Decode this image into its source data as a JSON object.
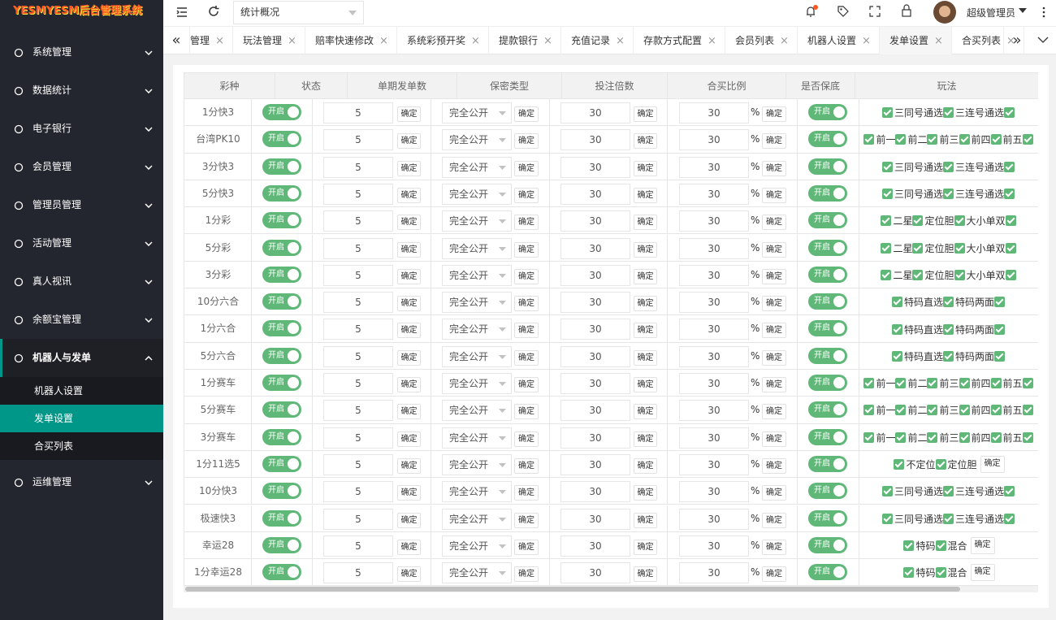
{
  "sidebar": {
    "logo": "YESMYESM后台管理系统",
    "menu": [
      {
        "label": "系统管理"
      },
      {
        "label": "数据统计"
      },
      {
        "label": "电子银行"
      },
      {
        "label": "会员管理"
      },
      {
        "label": "管理员管理"
      },
      {
        "label": "活动管理"
      },
      {
        "label": "真人视讯"
      },
      {
        "label": "余额宝管理"
      },
      {
        "label": "机器人与发单",
        "expanded": true,
        "children": [
          {
            "label": "机器人设置",
            "active": false
          },
          {
            "label": "发单设置",
            "active": true
          },
          {
            "label": "合买列表",
            "active": false
          }
        ]
      },
      {
        "label": "运维管理"
      }
    ]
  },
  "header": {
    "select": "统计概况",
    "user": "超级管理员"
  },
  "tabs": [
    {
      "label": "管理",
      "active": false
    },
    {
      "label": "玩法管理",
      "active": false
    },
    {
      "label": "赔率快速修改",
      "active": false
    },
    {
      "label": "系统彩预开奖",
      "active": false
    },
    {
      "label": "提款银行",
      "active": false
    },
    {
      "label": "充值记录",
      "active": false
    },
    {
      "label": "存款方式配置",
      "active": false
    },
    {
      "label": "会员列表",
      "active": false
    },
    {
      "label": "机器人设置",
      "active": false
    },
    {
      "label": "发单设置",
      "active": true
    },
    {
      "label": "合买列表",
      "active": false
    }
  ],
  "table": {
    "columns": [
      "彩种",
      "状态",
      "单期发单数",
      "保密类型",
      "投注倍数",
      "合买比例",
      "是否保底",
      "玩法"
    ],
    "confirm": "确定",
    "percent": "%",
    "rows": [
      {
        "name": "1分快3",
        "status": "开启",
        "count": 5,
        "secrecy": "完全公开",
        "multiple": 30,
        "ratio": 30,
        "guarantee": "开启",
        "plays": [
          "三同号通选",
          "三连号通选"
        ]
      },
      {
        "name": "台湾PK10",
        "status": "开启",
        "count": 5,
        "secrecy": "完全公开",
        "multiple": 30,
        "ratio": 30,
        "guarantee": "开启",
        "plays": [
          "前一",
          "前二",
          "前三",
          "前四",
          "前五"
        ]
      },
      {
        "name": "3分快3",
        "status": "开启",
        "count": 5,
        "secrecy": "完全公开",
        "multiple": 30,
        "ratio": 30,
        "guarantee": "开启",
        "plays": [
          "三同号通选",
          "三连号通选"
        ]
      },
      {
        "name": "5分快3",
        "status": "开启",
        "count": 5,
        "secrecy": "完全公开",
        "multiple": 30,
        "ratio": 30,
        "guarantee": "开启",
        "plays": [
          "三同号通选",
          "三连号通选"
        ]
      },
      {
        "name": "1分彩",
        "status": "开启",
        "count": 5,
        "secrecy": "完全公开",
        "multiple": 30,
        "ratio": 30,
        "guarantee": "开启",
        "plays": [
          "二星",
          "定位胆",
          "大小单双"
        ]
      },
      {
        "name": "5分彩",
        "status": "开启",
        "count": 5,
        "secrecy": "完全公开",
        "multiple": 30,
        "ratio": 30,
        "guarantee": "开启",
        "plays": [
          "二星",
          "定位胆",
          "大小单双"
        ]
      },
      {
        "name": "3分彩",
        "status": "开启",
        "count": 5,
        "secrecy": "完全公开",
        "multiple": 30,
        "ratio": 30,
        "guarantee": "开启",
        "plays": [
          "二星",
          "定位胆",
          "大小单双"
        ]
      },
      {
        "name": "10分六合",
        "status": "开启",
        "count": 5,
        "secrecy": "完全公开",
        "multiple": 30,
        "ratio": 30,
        "guarantee": "开启",
        "plays": [
          "特码直选",
          "特码两面"
        ]
      },
      {
        "name": "1分六合",
        "status": "开启",
        "count": 5,
        "secrecy": "完全公开",
        "multiple": 30,
        "ratio": 30,
        "guarantee": "开启",
        "plays": [
          "特码直选",
          "特码两面"
        ]
      },
      {
        "name": "5分六合",
        "status": "开启",
        "count": 5,
        "secrecy": "完全公开",
        "multiple": 30,
        "ratio": 30,
        "guarantee": "开启",
        "plays": [
          "特码直选",
          "特码两面"
        ]
      },
      {
        "name": "1分赛车",
        "status": "开启",
        "count": 5,
        "secrecy": "完全公开",
        "multiple": 30,
        "ratio": 30,
        "guarantee": "开启",
        "plays": [
          "前一",
          "前二",
          "前三",
          "前四",
          "前五"
        ]
      },
      {
        "name": "5分赛车",
        "status": "开启",
        "count": 5,
        "secrecy": "完全公开",
        "multiple": 30,
        "ratio": 30,
        "guarantee": "开启",
        "plays": [
          "前一",
          "前二",
          "前三",
          "前四",
          "前五"
        ]
      },
      {
        "name": "3分赛车",
        "status": "开启",
        "count": 5,
        "secrecy": "完全公开",
        "multiple": 30,
        "ratio": 30,
        "guarantee": "开启",
        "plays": [
          "前一",
          "前二",
          "前三",
          "前四",
          "前五"
        ]
      },
      {
        "name": "1分11选5",
        "status": "开启",
        "count": 5,
        "secrecy": "完全公开",
        "multiple": 30,
        "ratio": 30,
        "guarantee": "开启",
        "plays": [
          "不定位",
          "定位胆"
        ],
        "play_confirm": true
      },
      {
        "name": "10分快3",
        "status": "开启",
        "count": 5,
        "secrecy": "完全公开",
        "multiple": 30,
        "ratio": 30,
        "guarantee": "开启",
        "plays": [
          "三同号通选",
          "三连号通选"
        ]
      },
      {
        "name": "极速快3",
        "status": "开启",
        "count": 5,
        "secrecy": "完全公开",
        "multiple": 30,
        "ratio": 30,
        "guarantee": "开启",
        "plays": [
          "三同号通选",
          "三连号通选"
        ]
      },
      {
        "name": "幸运28",
        "status": "开启",
        "count": 5,
        "secrecy": "完全公开",
        "multiple": 30,
        "ratio": 30,
        "guarantee": "开启",
        "plays": [
          "特码",
          "混合"
        ],
        "play_confirm": true
      },
      {
        "name": "1分幸运28",
        "status": "开启",
        "count": 5,
        "secrecy": "完全公开",
        "multiple": 30,
        "ratio": 30,
        "guarantee": "开启",
        "plays": [
          "特码",
          "混合"
        ],
        "play_confirm": true
      }
    ]
  }
}
